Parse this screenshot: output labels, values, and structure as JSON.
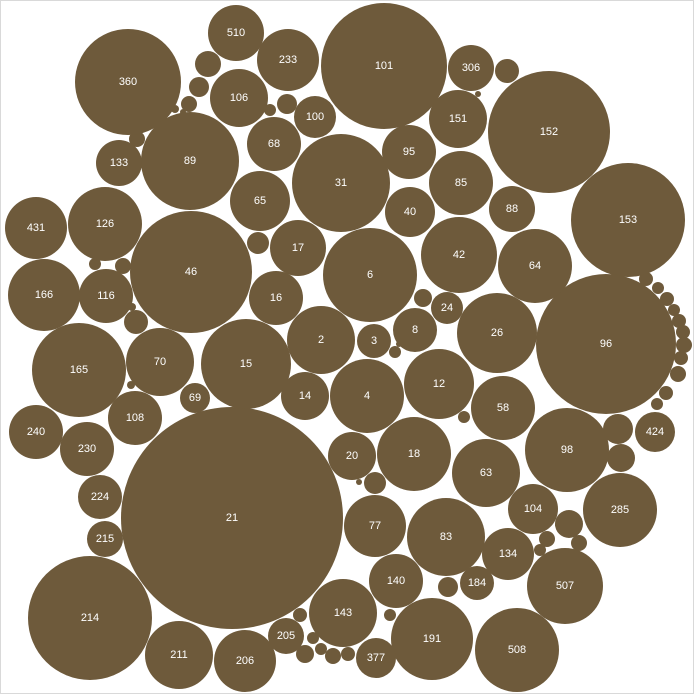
{
  "chart_data": {
    "type": "bubble",
    "title": "",
    "color": "#6e5a3b",
    "label_color": "#ffffff",
    "background": "#ffffff",
    "bubbles": [
      {
        "label": "21"
      },
      {
        "label": "101"
      },
      {
        "label": "152"
      },
      {
        "label": "153"
      },
      {
        "label": "96"
      },
      {
        "label": "46"
      },
      {
        "label": "360"
      },
      {
        "label": "214"
      },
      {
        "label": "89"
      },
      {
        "label": "31"
      },
      {
        "label": "6"
      },
      {
        "label": "165"
      },
      {
        "label": "15"
      },
      {
        "label": "83"
      },
      {
        "label": "98"
      },
      {
        "label": "191"
      },
      {
        "label": "508"
      },
      {
        "label": "507"
      },
      {
        "label": "42"
      },
      {
        "label": "26"
      },
      {
        "label": "64"
      },
      {
        "label": "18"
      },
      {
        "label": "4"
      },
      {
        "label": "12"
      },
      {
        "label": "285"
      },
      {
        "label": "143"
      },
      {
        "label": "211"
      },
      {
        "label": "166"
      },
      {
        "label": "126"
      },
      {
        "label": "2"
      },
      {
        "label": "63"
      },
      {
        "label": "206"
      },
      {
        "label": "70"
      },
      {
        "label": "65"
      },
      {
        "label": "431"
      },
      {
        "label": "85"
      },
      {
        "label": "58"
      },
      {
        "label": "77"
      },
      {
        "label": "151"
      },
      {
        "label": "233"
      },
      {
        "label": "106"
      },
      {
        "label": "68"
      },
      {
        "label": "108"
      },
      {
        "label": "116"
      },
      {
        "label": "17"
      },
      {
        "label": "134"
      },
      {
        "label": "16"
      },
      {
        "label": "95"
      },
      {
        "label": "140"
      },
      {
        "label": "230"
      },
      {
        "label": "240"
      },
      {
        "label": "510"
      },
      {
        "label": "104"
      },
      {
        "label": "40"
      },
      {
        "label": "20"
      },
      {
        "label": "133"
      },
      {
        "label": "14"
      },
      {
        "label": "377"
      },
      {
        "label": "424"
      },
      {
        "label": "224"
      },
      {
        "label": "306"
      },
      {
        "label": "100"
      },
      {
        "label": "8"
      },
      {
        "label": "88"
      },
      {
        "label": "215"
      },
      {
        "label": "205"
      },
      {
        "label": "184"
      },
      {
        "label": "3"
      },
      {
        "label": "24"
      },
      {
        "label": "69"
      }
    ],
    "unlabeled_bubble_count": 49
  }
}
